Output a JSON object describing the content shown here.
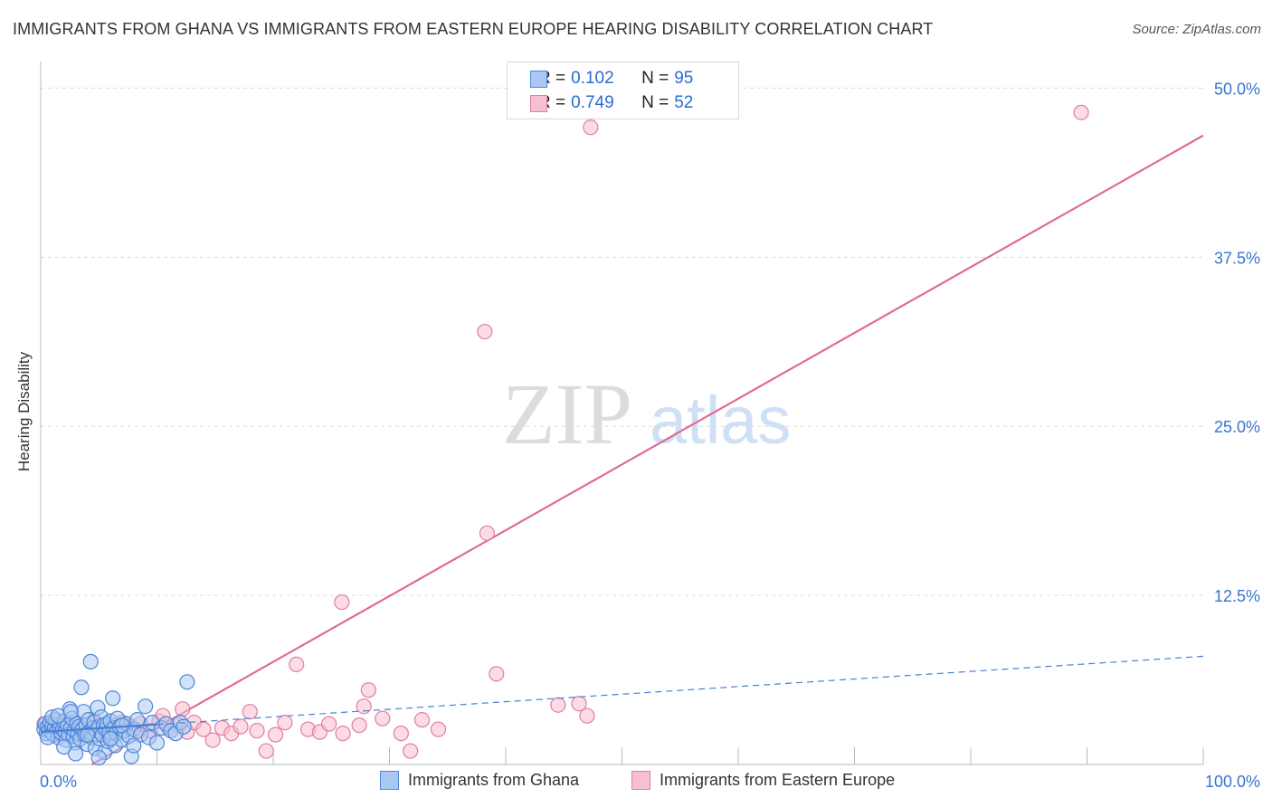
{
  "title": "IMMIGRANTS FROM GHANA VS IMMIGRANTS FROM EASTERN EUROPE HEARING DISABILITY CORRELATION CHART",
  "source": "Source: ZipAtlas.com",
  "watermark": {
    "zip": "ZIP",
    "atlas": "atlas"
  },
  "legend": {
    "ghana": {
      "r_label": "R = ",
      "r_value": "0.102",
      "n_label": "N = ",
      "n_value": "95"
    },
    "eastern_europe": {
      "r_label": "R = ",
      "r_value": "0.749",
      "n_label": "N = ",
      "n_value": "52"
    }
  },
  "colors": {
    "ghana_fill": "#a9c8f2",
    "ghana_stroke": "#4f86d9",
    "ghana_line": "#4a7fd4",
    "ee_fill": "#f7bfd0",
    "ee_stroke": "#e17ea0",
    "ee_line": "#e06a96",
    "grid": "#d9d9d9",
    "tick_label": "#3a74cf"
  },
  "chart_data": {
    "type": "scatter",
    "title": "IMMIGRANTS FROM GHANA VS IMMIGRANTS FROM EASTERN EUROPE HEARING DISABILITY CORRELATION CHART",
    "xlabel": "",
    "ylabel": "Hearing Disability",
    "xlim": [
      0,
      100
    ],
    "ylim": [
      0,
      51.5
    ],
    "x_ticks": [
      {
        "value": 0,
        "label": "0.0%"
      },
      {
        "value": 100,
        "label": "100.0%"
      }
    ],
    "y_ticks": [
      {
        "value": 12.5,
        "label": "12.5%"
      },
      {
        "value": 25.0,
        "label": "25.0%"
      },
      {
        "value": 37.5,
        "label": "37.5%"
      },
      {
        "value": 50.0,
        "label": "50.0%"
      }
    ],
    "series": [
      {
        "name": "Immigrants from Ghana",
        "r": 0.102,
        "n": 95,
        "trend": {
          "x": [
            0,
            100
          ],
          "y": [
            2.4,
            8.0
          ],
          "style": "dashed"
        },
        "points": [
          [
            0.3,
            2.6
          ],
          [
            0.4,
            3.0
          ],
          [
            0.5,
            2.3
          ],
          [
            0.6,
            2.8
          ],
          [
            0.7,
            2.5
          ],
          [
            0.8,
            3.1
          ],
          [
            0.9,
            2.4
          ],
          [
            1.0,
            2.9
          ],
          [
            1.1,
            2.2
          ],
          [
            1.2,
            2.7
          ],
          [
            1.3,
            3.3
          ],
          [
            1.4,
            2.5
          ],
          [
            1.5,
            2.0
          ],
          [
            1.6,
            2.8
          ],
          [
            1.7,
            3.0
          ],
          [
            1.8,
            2.3
          ],
          [
            1.9,
            2.6
          ],
          [
            2.0,
            3.2
          ],
          [
            2.1,
            2.4
          ],
          [
            2.2,
            1.8
          ],
          [
            2.3,
            2.9
          ],
          [
            2.4,
            2.2
          ],
          [
            2.5,
            4.1
          ],
          [
            2.6,
            2.7
          ],
          [
            2.7,
            3.4
          ],
          [
            2.8,
            2.1
          ],
          [
            2.9,
            2.5
          ],
          [
            3.0,
            1.6
          ],
          [
            3.1,
            3.0
          ],
          [
            3.2,
            2.3
          ],
          [
            3.3,
            2.8
          ],
          [
            3.4,
            1.9
          ],
          [
            3.5,
            5.7
          ],
          [
            3.6,
            2.6
          ],
          [
            3.7,
            3.9
          ],
          [
            3.8,
            2.2
          ],
          [
            3.9,
            2.9
          ],
          [
            4.0,
            1.5
          ],
          [
            4.1,
            3.3
          ],
          [
            4.2,
            2.4
          ],
          [
            4.3,
            7.6
          ],
          [
            4.4,
            2.0
          ],
          [
            4.5,
            2.7
          ],
          [
            4.6,
            3.1
          ],
          [
            4.7,
            1.2
          ],
          [
            4.8,
            2.5
          ],
          [
            4.9,
            4.2
          ],
          [
            5.0,
            2.8
          ],
          [
            5.1,
            1.9
          ],
          [
            5.2,
            3.5
          ],
          [
            5.3,
            2.2
          ],
          [
            5.4,
            2.9
          ],
          [
            5.5,
            0.9
          ],
          [
            5.6,
            2.6
          ],
          [
            5.7,
            3.0
          ],
          [
            5.8,
            1.7
          ],
          [
            5.9,
            2.4
          ],
          [
            6.0,
            3.2
          ],
          [
            6.1,
            2.0
          ],
          [
            6.2,
            4.9
          ],
          [
            6.3,
            2.7
          ],
          [
            6.4,
            1.4
          ],
          [
            6.5,
            2.3
          ],
          [
            6.6,
            3.4
          ],
          [
            6.8,
            2.8
          ],
          [
            7.0,
            1.8
          ],
          [
            7.2,
            2.5
          ],
          [
            7.4,
            3.0
          ],
          [
            7.6,
            2.1
          ],
          [
            7.8,
            0.6
          ],
          [
            8.0,
            2.6
          ],
          [
            8.3,
            3.3
          ],
          [
            8.6,
            2.2
          ],
          [
            9.0,
            4.3
          ],
          [
            9.3,
            2.0
          ],
          [
            9.6,
            3.1
          ],
          [
            10.0,
            1.6
          ],
          [
            10.4,
            2.7
          ],
          [
            10.8,
            3.0
          ],
          [
            11.2,
            2.5
          ],
          [
            11.6,
            2.3
          ],
          [
            12.0,
            3.1
          ],
          [
            12.3,
            2.8
          ],
          [
            12.6,
            6.1
          ],
          [
            1.0,
            3.5
          ],
          [
            2.0,
            1.3
          ],
          [
            3.0,
            0.8
          ],
          [
            4.0,
            2.2
          ],
          [
            5.0,
            0.5
          ],
          [
            6.0,
            1.9
          ],
          [
            7.0,
            2.9
          ],
          [
            8.0,
            1.4
          ],
          [
            0.6,
            2.0
          ],
          [
            1.5,
            3.6
          ],
          [
            2.6,
            3.9
          ]
        ]
      },
      {
        "name": "Immigrants from Eastern Europe",
        "r": 0.749,
        "n": 52,
        "trend": {
          "x": [
            4.4,
            100
          ],
          "y": [
            0.0,
            46.5
          ],
          "style": "solid"
        },
        "points": [
          [
            0.3,
            3.0
          ],
          [
            1.0,
            2.8
          ],
          [
            1.6,
            2.5
          ],
          [
            2.2,
            3.1
          ],
          [
            3.0,
            2.7
          ],
          [
            3.8,
            2.9
          ],
          [
            4.6,
            3.2
          ],
          [
            5.4,
            2.6
          ],
          [
            6.2,
            2.9
          ],
          [
            7.0,
            3.1
          ],
          [
            7.8,
            2.8
          ],
          [
            8.6,
            3.0
          ],
          [
            9.4,
            2.5
          ],
          [
            10.2,
            3.2
          ],
          [
            11.0,
            2.7
          ],
          [
            11.8,
            2.9
          ],
          [
            12.6,
            2.4
          ],
          [
            13.2,
            3.1
          ],
          [
            14.0,
            2.6
          ],
          [
            14.8,
            1.8
          ],
          [
            15.6,
            2.7
          ],
          [
            16.4,
            2.3
          ],
          [
            17.2,
            2.8
          ],
          [
            18.0,
            3.9
          ],
          [
            18.6,
            2.5
          ],
          [
            19.4,
            1.0
          ],
          [
            20.2,
            2.2
          ],
          [
            21.0,
            3.1
          ],
          [
            22.0,
            7.4
          ],
          [
            23.0,
            2.6
          ],
          [
            24.0,
            2.4
          ],
          [
            24.8,
            3.0
          ],
          [
            26.0,
            2.3
          ],
          [
            27.4,
            2.9
          ],
          [
            28.2,
            5.5
          ],
          [
            27.8,
            4.3
          ],
          [
            29.4,
            3.4
          ],
          [
            31.0,
            2.3
          ],
          [
            31.8,
            1.0
          ],
          [
            32.8,
            3.3
          ],
          [
            34.2,
            2.6
          ],
          [
            39.2,
            6.7
          ],
          [
            44.5,
            4.4
          ],
          [
            46.3,
            4.5
          ],
          [
            47.0,
            3.6
          ],
          [
            25.9,
            12.0
          ],
          [
            38.4,
            17.1
          ],
          [
            38.2,
            32.0
          ],
          [
            47.3,
            47.1
          ],
          [
            89.5,
            48.2
          ],
          [
            12.2,
            4.1
          ],
          [
            10.5,
            3.6
          ]
        ]
      }
    ],
    "legend_position": "top-center"
  },
  "bottom_legend": {
    "ghana": "Immigrants from Ghana",
    "eastern_europe": "Immigrants from Eastern Europe"
  }
}
